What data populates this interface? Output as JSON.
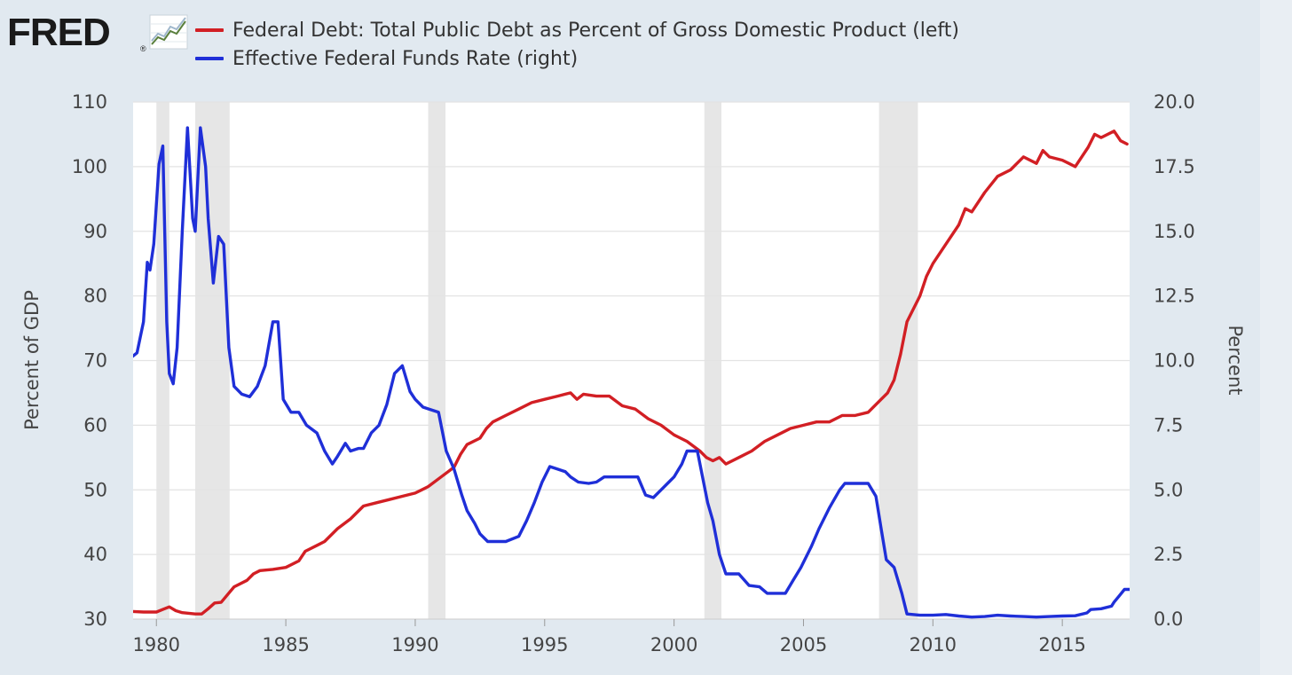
{
  "logo": {
    "text": "FRED",
    "registered": "®"
  },
  "chart_data": {
    "type": "line",
    "source": "FRED",
    "x_range": [
      1979.1,
      2017.6
    ],
    "x_ticks": [
      1980,
      1985,
      1990,
      1995,
      2000,
      2005,
      2010,
      2015
    ],
    "left_axis": {
      "title": "Percent of GDP",
      "range": [
        30,
        110
      ],
      "ticks": [
        30,
        40,
        50,
        60,
        70,
        80,
        90,
        100,
        110
      ],
      "decimals": 0
    },
    "right_axis": {
      "title": "Percent",
      "range": [
        0,
        20
      ],
      "ticks": [
        0,
        2.5,
        5,
        7.5,
        10,
        12.5,
        15,
        17.5,
        20
      ],
      "decimals": 1
    },
    "recessions": [
      [
        1980.0,
        1980.5
      ],
      [
        1981.5,
        1982.83
      ],
      [
        1990.5,
        1991.17
      ],
      [
        2001.17,
        2001.83
      ],
      [
        2007.92,
        2009.42
      ]
    ],
    "series": [
      {
        "name": "Federal Debt: Total Public Debt as Percent of Gross Domestic Product (left)",
        "axis": "left",
        "color": "#d21f24",
        "points": [
          [
            1979.0,
            31.2
          ],
          [
            1979.5,
            31.1
          ],
          [
            1980.0,
            31.1
          ],
          [
            1980.25,
            31.5
          ],
          [
            1980.5,
            31.9
          ],
          [
            1980.75,
            31.3
          ],
          [
            1981.0,
            31.0
          ],
          [
            1981.5,
            30.8
          ],
          [
            1981.75,
            30.8
          ],
          [
            1982.0,
            31.6
          ],
          [
            1982.25,
            32.5
          ],
          [
            1982.5,
            32.6
          ],
          [
            1982.75,
            33.8
          ],
          [
            1983.0,
            35.0
          ],
          [
            1983.5,
            36.0
          ],
          [
            1983.75,
            37.0
          ],
          [
            1984.0,
            37.5
          ],
          [
            1984.5,
            37.7
          ],
          [
            1985.0,
            38.0
          ],
          [
            1985.5,
            39.0
          ],
          [
            1985.75,
            40.5
          ],
          [
            1986.25,
            41.5
          ],
          [
            1986.5,
            42.0
          ],
          [
            1987.0,
            44.0
          ],
          [
            1987.5,
            45.5
          ],
          [
            1988.0,
            47.5
          ],
          [
            1988.5,
            48.0
          ],
          [
            1989.0,
            48.5
          ],
          [
            1989.5,
            49.0
          ],
          [
            1990.0,
            49.5
          ],
          [
            1990.25,
            50.0
          ],
          [
            1990.5,
            50.5
          ],
          [
            1991.0,
            52.0
          ],
          [
            1991.5,
            53.5
          ],
          [
            1991.75,
            55.5
          ],
          [
            1992.0,
            57.0
          ],
          [
            1992.5,
            58.0
          ],
          [
            1992.75,
            59.5
          ],
          [
            1993.0,
            60.5
          ],
          [
            1993.5,
            61.5
          ],
          [
            1994.0,
            62.5
          ],
          [
            1994.5,
            63.5
          ],
          [
            1995.0,
            64.0
          ],
          [
            1995.5,
            64.5
          ],
          [
            1996.0,
            65.0
          ],
          [
            1996.25,
            64.0
          ],
          [
            1996.5,
            64.8
          ],
          [
            1997.0,
            64.5
          ],
          [
            1997.5,
            64.5
          ],
          [
            1998.0,
            63.0
          ],
          [
            1998.5,
            62.5
          ],
          [
            1999.0,
            61.0
          ],
          [
            1999.5,
            60.0
          ],
          [
            2000.0,
            58.5
          ],
          [
            2000.5,
            57.5
          ],
          [
            2001.0,
            56.0
          ],
          [
            2001.25,
            55.0
          ],
          [
            2001.5,
            54.5
          ],
          [
            2001.75,
            55.0
          ],
          [
            2002.0,
            54.0
          ],
          [
            2002.5,
            55.0
          ],
          [
            2003.0,
            56.0
          ],
          [
            2003.5,
            57.5
          ],
          [
            2004.0,
            58.5
          ],
          [
            2004.5,
            59.5
          ],
          [
            2005.0,
            60.0
          ],
          [
            2005.5,
            60.5
          ],
          [
            2006.0,
            60.5
          ],
          [
            2006.5,
            61.5
          ],
          [
            2007.0,
            61.5
          ],
          [
            2007.5,
            62.0
          ],
          [
            2008.0,
            64.0
          ],
          [
            2008.25,
            65.0
          ],
          [
            2008.5,
            67.0
          ],
          [
            2008.75,
            71.0
          ],
          [
            2009.0,
            76.0
          ],
          [
            2009.5,
            80.0
          ],
          [
            2009.75,
            83.0
          ],
          [
            2010.0,
            85.0
          ],
          [
            2010.5,
            88.0
          ],
          [
            2011.0,
            91.0
          ],
          [
            2011.25,
            93.5
          ],
          [
            2011.5,
            93.0
          ],
          [
            2012.0,
            96.0
          ],
          [
            2012.5,
            98.5
          ],
          [
            2013.0,
            99.5
          ],
          [
            2013.25,
            100.5
          ],
          [
            2013.5,
            101.5
          ],
          [
            2014.0,
            100.5
          ],
          [
            2014.25,
            102.5
          ],
          [
            2014.5,
            101.5
          ],
          [
            2015.0,
            101.0
          ],
          [
            2015.25,
            100.5
          ],
          [
            2015.5,
            100.0
          ],
          [
            2016.0,
            103.0
          ],
          [
            2016.25,
            105.0
          ],
          [
            2016.5,
            104.5
          ],
          [
            2017.0,
            105.5
          ],
          [
            2017.25,
            104.0
          ],
          [
            2017.5,
            103.5
          ]
        ]
      },
      {
        "name": "Effective Federal Funds Rate (right)",
        "axis": "right",
        "color": "#1f2fd8",
        "points": [
          [
            1979.0,
            10.1
          ],
          [
            1979.25,
            10.3
          ],
          [
            1979.5,
            11.5
          ],
          [
            1979.65,
            13.8
          ],
          [
            1979.75,
            13.5
          ],
          [
            1979.9,
            14.5
          ],
          [
            1980.1,
            17.6
          ],
          [
            1980.25,
            18.3
          ],
          [
            1980.4,
            11.5
          ],
          [
            1980.5,
            9.5
          ],
          [
            1980.65,
            9.1
          ],
          [
            1980.8,
            10.5
          ],
          [
            1981.0,
            15.0
          ],
          [
            1981.2,
            19.0
          ],
          [
            1981.4,
            15.5
          ],
          [
            1981.5,
            15.0
          ],
          [
            1981.7,
            19.0
          ],
          [
            1981.9,
            17.5
          ],
          [
            1982.0,
            15.5
          ],
          [
            1982.2,
            13.0
          ],
          [
            1982.4,
            14.8
          ],
          [
            1982.6,
            14.5
          ],
          [
            1982.8,
            10.5
          ],
          [
            1983.0,
            9.0
          ],
          [
            1983.3,
            8.7
          ],
          [
            1983.6,
            8.6
          ],
          [
            1983.9,
            9.0
          ],
          [
            1984.2,
            9.8
          ],
          [
            1984.5,
            11.5
          ],
          [
            1984.7,
            11.5
          ],
          [
            1984.9,
            8.5
          ],
          [
            1985.2,
            8.0
          ],
          [
            1985.5,
            8.0
          ],
          [
            1985.8,
            7.5
          ],
          [
            1986.2,
            7.2
          ],
          [
            1986.5,
            6.5
          ],
          [
            1986.8,
            6.0
          ],
          [
            1987.0,
            6.3
          ],
          [
            1987.3,
            6.8
          ],
          [
            1987.5,
            6.5
          ],
          [
            1987.8,
            6.6
          ],
          [
            1988.0,
            6.6
          ],
          [
            1988.3,
            7.2
          ],
          [
            1988.6,
            7.5
          ],
          [
            1988.9,
            8.3
          ],
          [
            1989.2,
            9.5
          ],
          [
            1989.5,
            9.8
          ],
          [
            1989.8,
            8.8
          ],
          [
            1990.0,
            8.5
          ],
          [
            1990.3,
            8.2
          ],
          [
            1990.6,
            8.1
          ],
          [
            1990.9,
            8.0
          ],
          [
            1991.2,
            6.5
          ],
          [
            1991.5,
            5.8
          ],
          [
            1991.8,
            4.8
          ],
          [
            1992.0,
            4.2
          ],
          [
            1992.3,
            3.7
          ],
          [
            1992.5,
            3.3
          ],
          [
            1992.8,
            3.0
          ],
          [
            1993.0,
            3.0
          ],
          [
            1993.5,
            3.0
          ],
          [
            1994.0,
            3.2
          ],
          [
            1994.3,
            3.8
          ],
          [
            1994.6,
            4.5
          ],
          [
            1994.9,
            5.3
          ],
          [
            1995.2,
            5.9
          ],
          [
            1995.5,
            5.8
          ],
          [
            1995.8,
            5.7
          ],
          [
            1996.0,
            5.5
          ],
          [
            1996.3,
            5.3
          ],
          [
            1996.7,
            5.25
          ],
          [
            1997.0,
            5.3
          ],
          [
            1997.3,
            5.5
          ],
          [
            1997.6,
            5.5
          ],
          [
            1998.0,
            5.5
          ],
          [
            1998.3,
            5.5
          ],
          [
            1998.6,
            5.5
          ],
          [
            1998.9,
            4.8
          ],
          [
            1999.2,
            4.7
          ],
          [
            1999.5,
            5.0
          ],
          [
            1999.8,
            5.3
          ],
          [
            2000.0,
            5.5
          ],
          [
            2000.3,
            6.0
          ],
          [
            2000.5,
            6.5
          ],
          [
            2000.9,
            6.5
          ],
          [
            2001.1,
            5.5
          ],
          [
            2001.3,
            4.5
          ],
          [
            2001.5,
            3.8
          ],
          [
            2001.75,
            2.5
          ],
          [
            2002.0,
            1.75
          ],
          [
            2002.5,
            1.75
          ],
          [
            2002.9,
            1.3
          ],
          [
            2003.3,
            1.25
          ],
          [
            2003.6,
            1.0
          ],
          [
            2004.0,
            1.0
          ],
          [
            2004.3,
            1.0
          ],
          [
            2004.6,
            1.5
          ],
          [
            2004.9,
            2.0
          ],
          [
            2005.3,
            2.8
          ],
          [
            2005.6,
            3.5
          ],
          [
            2006.0,
            4.3
          ],
          [
            2006.4,
            5.0
          ],
          [
            2006.6,
            5.25
          ],
          [
            2007.0,
            5.25
          ],
          [
            2007.5,
            5.25
          ],
          [
            2007.8,
            4.75
          ],
          [
            2008.0,
            3.5
          ],
          [
            2008.2,
            2.3
          ],
          [
            2008.5,
            2.0
          ],
          [
            2008.8,
            1.0
          ],
          [
            2009.0,
            0.2
          ],
          [
            2009.5,
            0.15
          ],
          [
            2010.0,
            0.15
          ],
          [
            2010.5,
            0.18
          ],
          [
            2011.0,
            0.12
          ],
          [
            2011.5,
            0.08
          ],
          [
            2012.0,
            0.1
          ],
          [
            2012.5,
            0.15
          ],
          [
            2013.0,
            0.12
          ],
          [
            2013.5,
            0.1
          ],
          [
            2014.0,
            0.08
          ],
          [
            2014.5,
            0.1
          ],
          [
            2015.0,
            0.12
          ],
          [
            2015.5,
            0.13
          ],
          [
            2015.95,
            0.24
          ],
          [
            2016.1,
            0.37
          ],
          [
            2016.5,
            0.4
          ],
          [
            2016.9,
            0.5
          ],
          [
            2017.0,
            0.66
          ],
          [
            2017.2,
            0.9
          ],
          [
            2017.4,
            1.15
          ],
          [
            2017.6,
            1.15
          ]
        ]
      }
    ]
  }
}
